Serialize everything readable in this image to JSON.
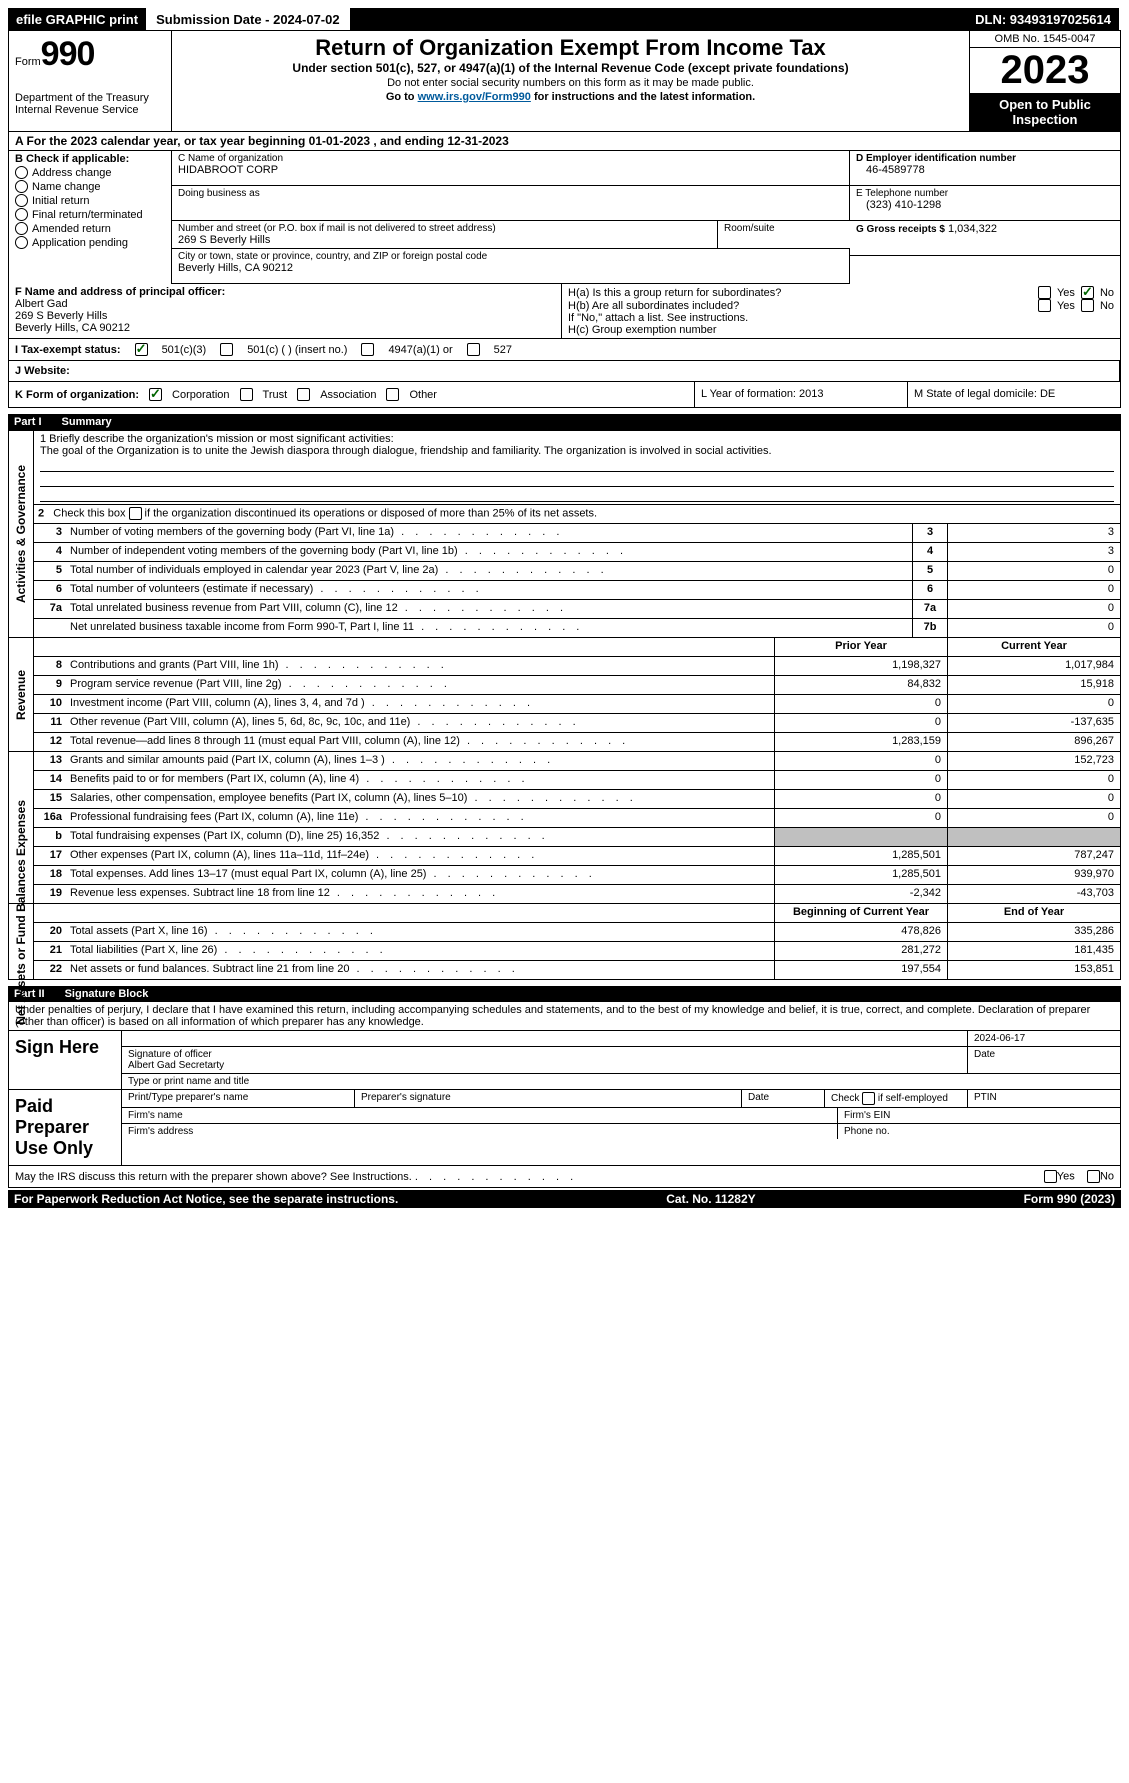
{
  "topbar": {
    "efile": "efile GRAPHIC print",
    "submission": "Submission Date - 2024-07-02",
    "dln": "DLN: 93493197025614"
  },
  "header": {
    "form_label": "Form",
    "form_num": "990",
    "dept": "Department of the Treasury Internal Revenue Service",
    "title": "Return of Organization Exempt From Income Tax",
    "subtitle": "Under section 501(c), 527, or 4947(a)(1) of the Internal Revenue Code (except private foundations)",
    "note1": "Do not enter social security numbers on this form as it may be made public.",
    "note2_pre": "Go to ",
    "note2_link": "www.irs.gov/Form990",
    "note2_post": " for instructions and the latest information.",
    "omb": "OMB No. 1545-0047",
    "year": "2023",
    "public": "Open to Public Inspection"
  },
  "rowA": "A  For the 2023 calendar year, or tax year beginning 01-01-2023    , and ending 12-31-2023",
  "boxB": {
    "label": "B Check if applicable:",
    "items": [
      "Address change",
      "Name change",
      "Initial return",
      "Final return/terminated",
      "Amended return",
      "Application pending"
    ]
  },
  "boxC": {
    "name_lbl": "C Name of organization",
    "name": "HIDABROOT CORP",
    "dba_lbl": "Doing business as",
    "addr_lbl": "Number and street (or P.O. box if mail is not delivered to street address)",
    "addr": "269 S Beverly Hills",
    "room_lbl": "Room/suite",
    "city_lbl": "City or town, state or province, country, and ZIP or foreign postal code",
    "city": "Beverly Hills, CA  90212"
  },
  "boxD": {
    "ein_lbl": "D Employer identification number",
    "ein": "46-4589778",
    "tel_lbl": "E Telephone number",
    "tel": "(323) 410-1298",
    "gross_lbl": "G Gross receipts $",
    "gross": "1,034,322"
  },
  "rowF": {
    "lbl": "F  Name and address of principal officer:",
    "name": "Albert Gad",
    "addr1": "269 S Beverly Hills",
    "addr2": "Beverly Hills, CA  90212",
    "ha": "H(a)  Is this a group return for subordinates?",
    "hb": "H(b)  Are all subordinates included?",
    "hb_note": "If \"No,\" attach a list. See instructions.",
    "hc": "H(c)  Group exemption number",
    "yes": "Yes",
    "no": "No"
  },
  "rowI": {
    "lbl": "I    Tax-exempt status:",
    "o1": "501(c)(3)",
    "o2": "501(c) (  ) (insert no.)",
    "o3": "4947(a)(1) or",
    "o4": "527"
  },
  "rowJ": {
    "lbl": "J   Website:"
  },
  "rowK": {
    "lbl": "K Form of organization:",
    "o1": "Corporation",
    "o2": "Trust",
    "o3": "Association",
    "o4": "Other",
    "l": "L Year of formation: 2013",
    "m": "M State of legal domicile: DE"
  },
  "part1": {
    "num": "Part I",
    "title": "Summary"
  },
  "mission": {
    "lbl": "1   Briefly describe the organization's mission or most significant activities:",
    "txt": "The goal of the Organization is to unite the Jewish diaspora through dialogue, friendship and familiarity. The organization is involved in social activities."
  },
  "line2": "2    Check this box      if the organization discontinued its operations or disposed of more than 25% of its net assets.",
  "govLines": [
    {
      "n": "3",
      "d": "Number of voting members of the governing body (Part VI, line 1a)",
      "m": "3",
      "v": "3"
    },
    {
      "n": "4",
      "d": "Number of independent voting members of the governing body (Part VI, line 1b)",
      "m": "4",
      "v": "3"
    },
    {
      "n": "5",
      "d": "Total number of individuals employed in calendar year 2023 (Part V, line 2a)",
      "m": "5",
      "v": "0"
    },
    {
      "n": "6",
      "d": "Total number of volunteers (estimate if necessary)",
      "m": "6",
      "v": "0"
    },
    {
      "n": "7a",
      "d": "Total unrelated business revenue from Part VIII, column (C), line 12",
      "m": "7a",
      "v": "0"
    },
    {
      "n": "",
      "d": "Net unrelated business taxable income from Form 990-T, Part I, line 11",
      "m": "7b",
      "v": "0"
    }
  ],
  "revHdr": {
    "c1": "Prior Year",
    "c2": "Current Year"
  },
  "revLines": [
    {
      "n": "8",
      "d": "Contributions and grants (Part VIII, line 1h)",
      "v1": "1,198,327",
      "v2": "1,017,984"
    },
    {
      "n": "9",
      "d": "Program service revenue (Part VIII, line 2g)",
      "v1": "84,832",
      "v2": "15,918"
    },
    {
      "n": "10",
      "d": "Investment income (Part VIII, column (A), lines 3, 4, and 7d )",
      "v1": "0",
      "v2": "0"
    },
    {
      "n": "11",
      "d": "Other revenue (Part VIII, column (A), lines 5, 6d, 8c, 9c, 10c, and 11e)",
      "v1": "0",
      "v2": "-137,635"
    },
    {
      "n": "12",
      "d": "Total revenue—add lines 8 through 11 (must equal Part VIII, column (A), line 12)",
      "v1": "1,283,159",
      "v2": "896,267"
    }
  ],
  "expLines": [
    {
      "n": "13",
      "d": "Grants and similar amounts paid (Part IX, column (A), lines 1–3 )",
      "v1": "0",
      "v2": "152,723"
    },
    {
      "n": "14",
      "d": "Benefits paid to or for members (Part IX, column (A), line 4)",
      "v1": "0",
      "v2": "0"
    },
    {
      "n": "15",
      "d": "Salaries, other compensation, employee benefits (Part IX, column (A), lines 5–10)",
      "v1": "0",
      "v2": "0"
    },
    {
      "n": "16a",
      "d": "Professional fundraising fees (Part IX, column (A), line 11e)",
      "v1": "0",
      "v2": "0"
    },
    {
      "n": "b",
      "d": "Total fundraising expenses (Part IX, column (D), line 25) 16,352",
      "v1": "",
      "v2": "",
      "shade": true
    },
    {
      "n": "17",
      "d": "Other expenses (Part IX, column (A), lines 11a–11d, 11f–24e)",
      "v1": "1,285,501",
      "v2": "787,247"
    },
    {
      "n": "18",
      "d": "Total expenses. Add lines 13–17 (must equal Part IX, column (A), line 25)",
      "v1": "1,285,501",
      "v2": "939,970"
    },
    {
      "n": "19",
      "d": "Revenue less expenses. Subtract line 18 from line 12",
      "v1": "-2,342",
      "v2": "-43,703"
    }
  ],
  "netHdr": {
    "c1": "Beginning of Current Year",
    "c2": "End of Year"
  },
  "netLines": [
    {
      "n": "20",
      "d": "Total assets (Part X, line 16)",
      "v1": "478,826",
      "v2": "335,286"
    },
    {
      "n": "21",
      "d": "Total liabilities (Part X, line 26)",
      "v1": "281,272",
      "v2": "181,435"
    },
    {
      "n": "22",
      "d": "Net assets or fund balances. Subtract line 21 from line 20",
      "v1": "197,554",
      "v2": "153,851"
    }
  ],
  "part2": {
    "num": "Part II",
    "title": "Signature Block"
  },
  "sigDecl": "Under penalties of perjury, I declare that I have examined this return, including accompanying schedules and statements, and to the best of my knowledge and belief, it is true, correct, and complete. Declaration of preparer (other than officer) is based on all information of which preparer has any knowledge.",
  "sign": {
    "lbl": "Sign Here",
    "date": "2024-06-17",
    "sig_lbl": "Signature of officer",
    "name": "Albert Gad Secretarty",
    "type_lbl": "Type or print name and title",
    "date_lbl": "Date"
  },
  "paid": {
    "lbl": "Paid Preparer Use Only",
    "c1": "Print/Type preparer's name",
    "c2": "Preparer's signature",
    "c3": "Date",
    "c4": "Check       if self-employed",
    "c5": "PTIN",
    "f1": "Firm's name",
    "f2": "Firm's EIN",
    "f3": "Firm's address",
    "f4": "Phone no."
  },
  "discuss": {
    "txt": "May the IRS discuss this return with the preparer shown above? See Instructions.",
    "yes": "Yes",
    "no": "No"
  },
  "footer": {
    "left": "For Paperwork Reduction Act Notice, see the separate instructions.",
    "mid": "Cat. No. 11282Y",
    "right": "Form 990 (2023)"
  },
  "sideLabels": {
    "gov": "Activities & Governance",
    "rev": "Revenue",
    "exp": "Expenses",
    "net": "Net Assets or Fund Balances"
  }
}
